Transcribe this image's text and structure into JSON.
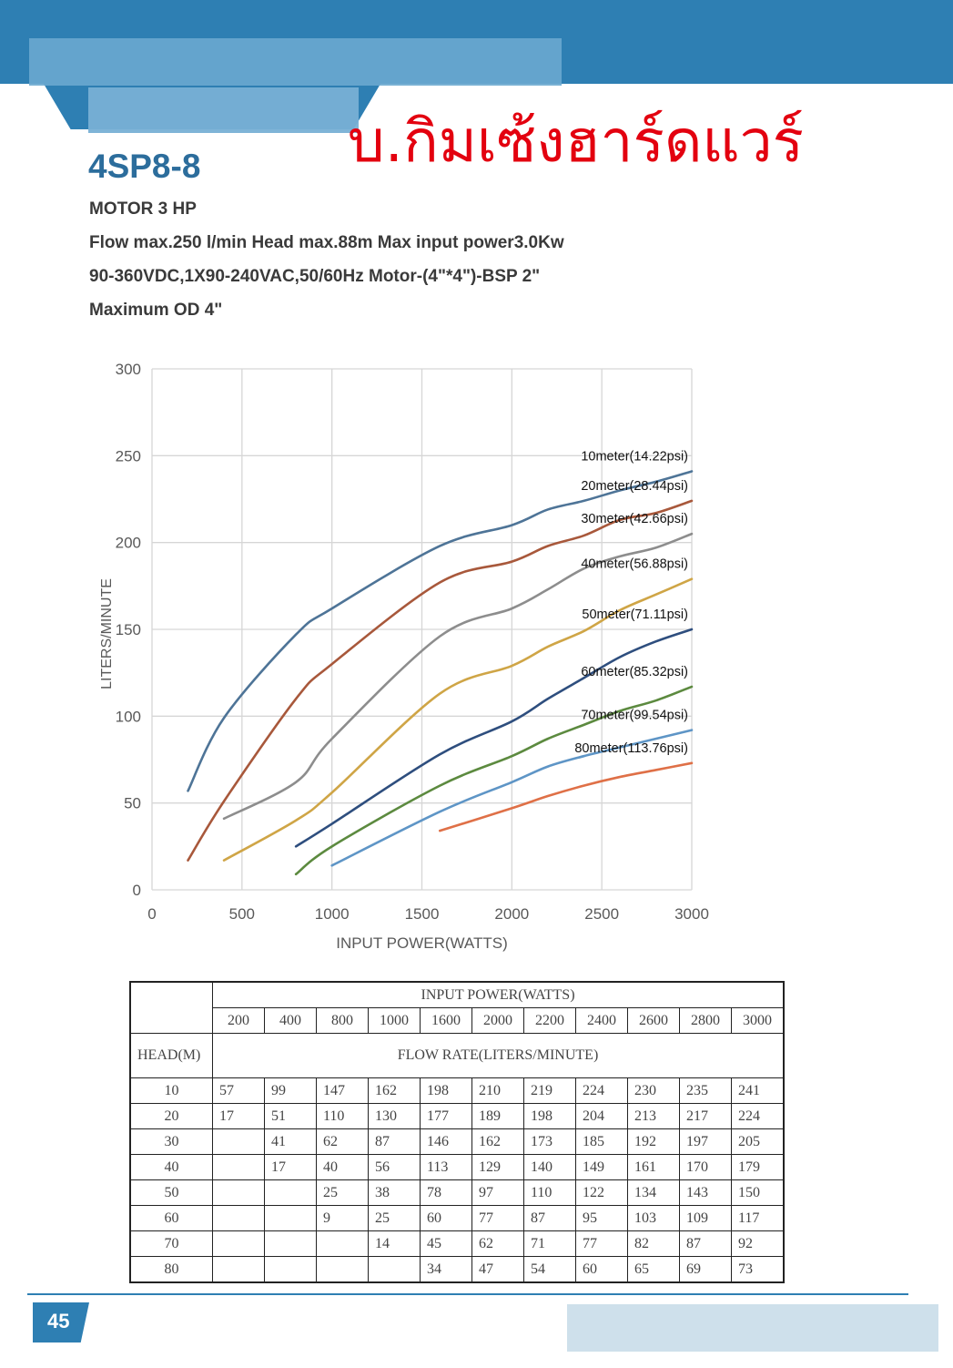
{
  "header": {
    "model": "4SP8-8",
    "shop_name": "บ.กิมเซ้งฮาร์ดแวร์"
  },
  "specs": [
    "MOTOR 3 HP",
    "Flow max.250 l/min  Head max.88m  Max input power3.0Kw",
    "90-360VDC,1X90-240VAC,50/60Hz Motor-(4\"*4\")-BSP 2\"",
    "Maximum OD 4\""
  ],
  "chart_data": {
    "type": "line",
    "xlabel": "INPUT POWER(WATTS)",
    "ylabel": "LITERS/MINUTE",
    "xlim": [
      0,
      3000
    ],
    "ylim": [
      0,
      300
    ],
    "xticks": [
      0,
      500,
      1000,
      1500,
      2000,
      2500,
      3000
    ],
    "yticks": [
      0,
      50,
      100,
      150,
      200,
      250,
      300
    ],
    "grid": true,
    "x": [
      200,
      400,
      800,
      1000,
      1600,
      2000,
      2200,
      2400,
      2600,
      2800,
      3000
    ],
    "series": [
      {
        "name": "10meter(14.22psi)",
        "color": "#4e7497",
        "values": [
          57,
          99,
          147,
          162,
          198,
          210,
          219,
          224,
          230,
          235,
          241
        ]
      },
      {
        "name": "20meter(28.44psi)",
        "color": "#a8583b",
        "values": [
          17,
          51,
          110,
          130,
          177,
          189,
          198,
          204,
          213,
          217,
          224
        ]
      },
      {
        "name": "30meter(42.66psi)",
        "color": "#8d8d8d",
        "values": [
          null,
          41,
          62,
          87,
          146,
          162,
          173,
          185,
          192,
          197,
          205
        ]
      },
      {
        "name": "40meter(56.88psi)",
        "color": "#cfa546",
        "values": [
          null,
          17,
          40,
          56,
          113,
          129,
          140,
          149,
          161,
          170,
          179
        ]
      },
      {
        "name": "50meter(71.11psi)",
        "color": "#2e4e7e",
        "values": [
          null,
          null,
          25,
          38,
          78,
          97,
          110,
          122,
          134,
          143,
          150
        ]
      },
      {
        "name": "60meter(85.32psi)",
        "color": "#5c8a3f",
        "values": [
          null,
          null,
          9,
          25,
          60,
          77,
          87,
          95,
          103,
          109,
          117
        ]
      },
      {
        "name": "70meter(99.54psi)",
        "color": "#5e95c6",
        "values": [
          null,
          null,
          null,
          14,
          45,
          62,
          71,
          77,
          82,
          87,
          92
        ]
      },
      {
        "name": "80meter(113.76psi)",
        "color": "#df7047",
        "values": [
          null,
          null,
          null,
          null,
          34,
          47,
          54,
          60,
          65,
          69,
          73
        ]
      }
    ]
  },
  "table": {
    "input_power_label": "INPUT  POWER(WATTS)",
    "head_label": "HEAD(M)",
    "flow_rate_label": "FLOW  RATE(LITERS/MINUTE)",
    "powers": [
      "200",
      "400",
      "800",
      "1000",
      "1600",
      "2000",
      "2200",
      "2400",
      "2600",
      "2800",
      "3000"
    ],
    "rows": [
      {
        "head": "10",
        "values": [
          "57",
          "99",
          "147",
          "162",
          "198",
          "210",
          "219",
          "224",
          "230",
          "235",
          "241"
        ]
      },
      {
        "head": "20",
        "values": [
          "17",
          "51",
          "110",
          "130",
          "177",
          "189",
          "198",
          "204",
          "213",
          "217",
          "224"
        ]
      },
      {
        "head": "30",
        "values": [
          "",
          "41",
          "62",
          "87",
          "146",
          "162",
          "173",
          "185",
          "192",
          "197",
          "205"
        ]
      },
      {
        "head": "40",
        "values": [
          "",
          "17",
          "40",
          "56",
          "113",
          "129",
          "140",
          "149",
          "161",
          "170",
          "179"
        ]
      },
      {
        "head": "50",
        "values": [
          "",
          "",
          "25",
          "38",
          "78",
          "97",
          "110",
          "122",
          "134",
          "143",
          "150"
        ]
      },
      {
        "head": "60",
        "values": [
          "",
          "",
          "9",
          "25",
          "60",
          "77",
          "87",
          "95",
          "103",
          "109",
          "117"
        ]
      },
      {
        "head": "70",
        "values": [
          "",
          "",
          "",
          "14",
          "45",
          "62",
          "71",
          "77",
          "82",
          "87",
          "92"
        ]
      },
      {
        "head": "80",
        "values": [
          "",
          "",
          "",
          "",
          "34",
          "47",
          "54",
          "60",
          "65",
          "69",
          "73"
        ]
      }
    ]
  },
  "footer": {
    "page_number": "45"
  }
}
